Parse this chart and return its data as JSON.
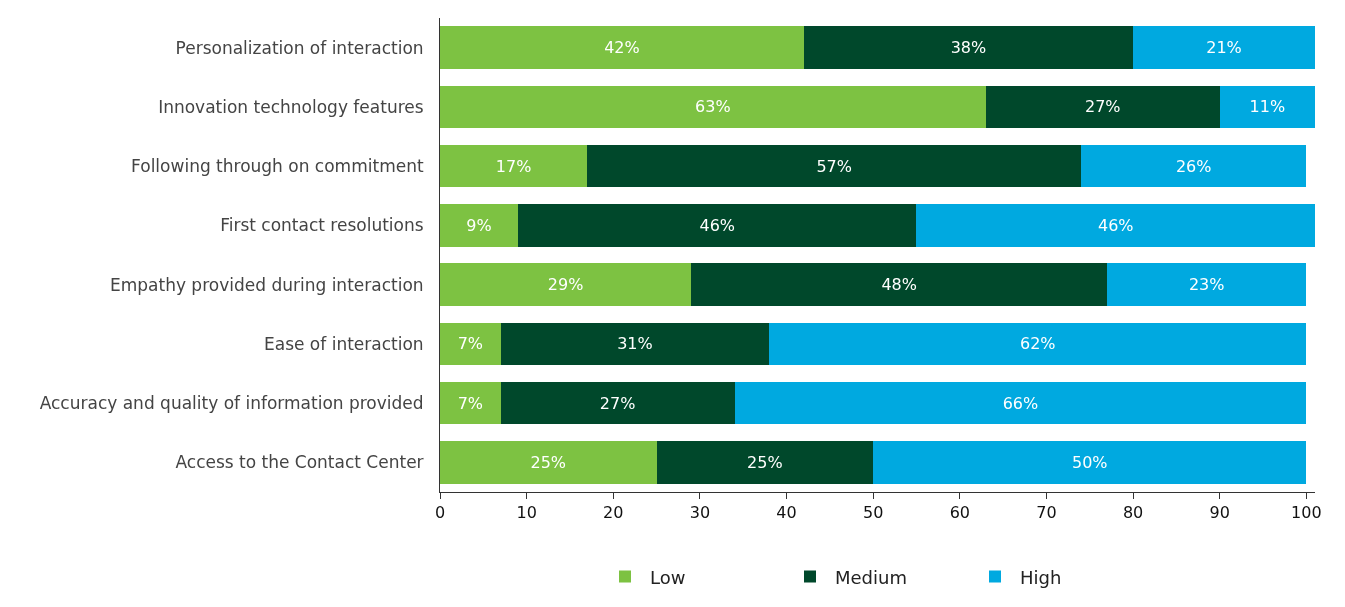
{
  "chart_data": {
    "type": "bar",
    "orientation": "horizontal",
    "stacked": true,
    "categories": [
      "Personalization of interaction",
      "Innovation technology features",
      "Following through on commitment",
      "First contact resolutions",
      "Empathy provided during interaction",
      "Ease of interaction",
      "Accuracy and quality of information provided",
      "Access to the Contact Center"
    ],
    "series": [
      {
        "name": "Low",
        "color": "#7dc242",
        "values": [
          42,
          63,
          17,
          9,
          29,
          7,
          7,
          25
        ],
        "value_labels": [
          "42%",
          "63%",
          "17%",
          "9%",
          "29%",
          "7%",
          "7%",
          "25%"
        ]
      },
      {
        "name": "Medium",
        "color": "#00482b",
        "values": [
          38,
          27,
          57,
          46,
          48,
          31,
          27,
          25
        ],
        "value_labels": [
          "38%",
          "27%",
          "57%",
          "46%",
          "48%",
          "31%",
          "27%",
          "25%"
        ]
      },
      {
        "name": "High",
        "color": "#00a9e0",
        "values": [
          21,
          11,
          26,
          46,
          23,
          62,
          66,
          50
        ],
        "value_labels": [
          "21%",
          "11%",
          "26%",
          "46%",
          "23%",
          "62%",
          "66%",
          "50%"
        ]
      }
    ],
    "xlim": [
      0,
      101
    ],
    "xticks": [
      0,
      10,
      20,
      30,
      40,
      50,
      60,
      70,
      80,
      90,
      100
    ],
    "grid": false,
    "legend": "bottom"
  }
}
